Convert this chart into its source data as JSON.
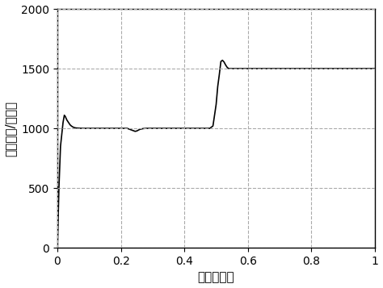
{
  "title": "",
  "xlabel": "时间（秒）",
  "ylabel": "转速（转/分钟）",
  "xlim": [
    0,
    1
  ],
  "ylim": [
    0,
    2000
  ],
  "xticks": [
    0,
    0.2,
    0.4,
    0.6,
    0.8,
    1.0
  ],
  "yticks": [
    0,
    500,
    1000,
    1500,
    2000
  ],
  "grid_linestyle": "--",
  "grid_color": "#aaaaaa",
  "line_color": "#000000",
  "line_width": 1.2,
  "bg_color": "#ffffff",
  "signal": {
    "t": [
      0,
      0.001,
      0.005,
      0.01,
      0.018,
      0.022,
      0.025,
      0.03,
      0.035,
      0.04,
      0.045,
      0.05,
      0.055,
      0.06,
      0.07,
      0.08,
      0.09,
      0.1,
      0.15,
      0.2,
      0.22,
      0.23,
      0.24,
      0.245,
      0.25,
      0.255,
      0.26,
      0.27,
      0.28,
      0.3,
      0.35,
      0.4,
      0.45,
      0.47,
      0.48,
      0.49,
      0.5,
      0.505,
      0.51,
      0.515,
      0.52,
      0.525,
      0.53,
      0.535,
      0.54,
      0.545,
      0.55,
      0.56,
      0.57,
      0.58,
      0.6,
      0.65,
      0.7,
      0.8,
      0.9,
      1.0
    ],
    "speed": [
      0,
      80,
      500,
      850,
      1050,
      1110,
      1100,
      1070,
      1050,
      1030,
      1018,
      1010,
      1005,
      1003,
      1001,
      1000,
      1000,
      1000,
      1000,
      1000,
      1000,
      990,
      980,
      975,
      978,
      985,
      992,
      998,
      1000,
      1000,
      1000,
      1000,
      1000,
      1000,
      1000,
      1020,
      1200,
      1350,
      1450,
      1560,
      1570,
      1555,
      1530,
      1510,
      1500,
      1500,
      1500,
      1500,
      1500,
      1500,
      1500,
      1500,
      1500,
      1500,
      1500,
      1500
    ]
  }
}
